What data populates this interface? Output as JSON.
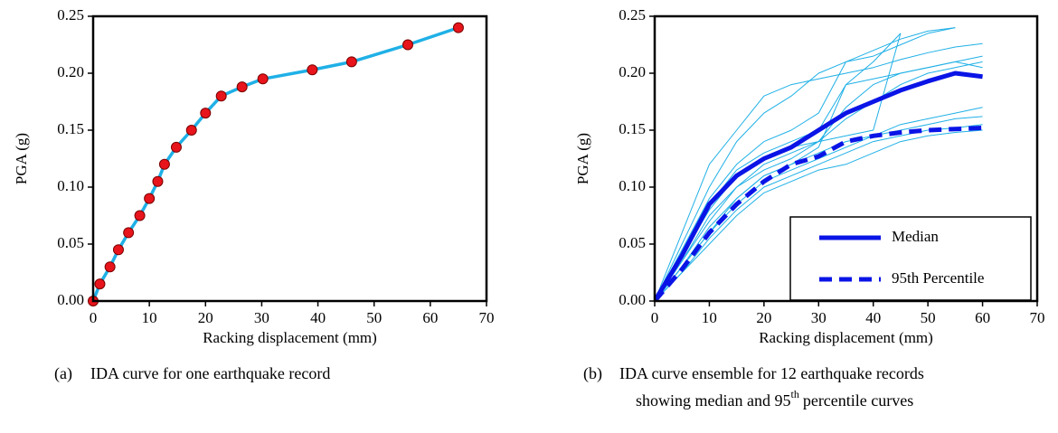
{
  "chart_data": [
    {
      "type": "line",
      "x_label": "Racking displacement (mm)",
      "y_label": "PGA (g)",
      "xlim": [
        0,
        70
      ],
      "xticks": [
        0,
        10,
        20,
        30,
        40,
        50,
        60,
        70
      ],
      "ylim": [
        0,
        0.25
      ],
      "yticks": [
        {
          "value": 0,
          "label": "0.00"
        },
        {
          "value": 0.05,
          "label": "0.05"
        },
        {
          "value": 0.1,
          "label": "0.10"
        },
        {
          "value": 0.15,
          "label": "0.15"
        },
        {
          "value": 0.2,
          "label": "0.20"
        },
        {
          "value": 0.25,
          "label": "0.25"
        }
      ],
      "x": [
        0,
        1.2,
        3,
        4.5,
        6.3,
        8.3,
        10,
        11.5,
        12.7,
        14.8,
        17.5,
        20,
        22.8,
        26.5,
        30.2,
        39,
        46,
        56,
        65
      ],
      "series": [
        {
          "color": "#1fb0e6",
          "marker_color": "#e8141c",
          "line_style": "solid",
          "values": [
            0,
            0.015,
            0.03,
            0.045,
            0.06,
            0.075,
            0.09,
            0.105,
            0.12,
            0.135,
            0.15,
            0.165,
            0.18,
            0.188,
            0.195,
            0.203,
            0.21,
            0.225,
            0.24
          ]
        }
      ],
      "caption": {
        "label": "(a)",
        "lines": [
          "IDA curve for one earthquake record"
        ]
      }
    },
    {
      "type": "line",
      "x_label": "Racking displacement (mm)",
      "y_label": "PGA (g)",
      "xlim": [
        0,
        70
      ],
      "xticks": [
        0,
        10,
        20,
        30,
        40,
        50,
        60,
        70
      ],
      "ylim": [
        0,
        0.25
      ],
      "yticks": [
        {
          "value": 0,
          "label": "0.00"
        },
        {
          "value": 0.05,
          "label": "0.05"
        },
        {
          "value": 0.1,
          "label": "0.10"
        },
        {
          "value": 0.15,
          "label": "0.15"
        },
        {
          "value": 0.2,
          "label": "0.20"
        },
        {
          "value": 0.25,
          "label": "0.25"
        }
      ],
      "x": [
        0,
        5,
        10,
        15,
        20,
        25,
        30,
        35,
        40,
        45,
        50,
        55,
        60
      ],
      "legend": "lower right",
      "series": [
        {
          "color": "#1fb0e6",
          "line_style": "thin",
          "values": [
            0,
            0.06,
            0.12,
            0.15,
            0.18,
            0.19,
            0.195,
            0.2,
            0.205,
            0.212,
            0.218,
            0.223,
            0.226
          ]
        },
        {
          "color": "#1fb0e6",
          "line_style": "thin",
          "values": [
            0,
            0.05,
            0.1,
            0.14,
            0.165,
            0.18,
            0.2,
            0.21,
            0.215,
            0.225,
            0.235,
            0.24,
            null
          ]
        },
        {
          "color": "#1fb0e6",
          "line_style": "thin",
          "values": [
            0,
            0.045,
            0.09,
            0.12,
            0.14,
            0.15,
            0.165,
            0.21,
            0.22,
            0.23,
            0.237,
            0.24,
            null
          ]
        },
        {
          "color": "#1fb0e6",
          "line_style": "thin",
          "values": [
            0,
            0.04,
            0.085,
            0.115,
            0.13,
            0.14,
            0.15,
            0.19,
            0.21,
            0.235,
            null,
            null,
            null
          ]
        },
        {
          "color": "#1fb0e6",
          "line_style": "thin",
          "values": [
            0,
            0.04,
            0.08,
            0.11,
            0.125,
            0.135,
            0.14,
            0.145,
            0.15,
            0.235,
            null,
            null,
            null
          ]
        },
        {
          "color": "#1fb0e6",
          "line_style": "thin",
          "values": [
            0,
            0.035,
            0.075,
            0.1,
            0.12,
            0.13,
            0.14,
            0.16,
            0.175,
            0.19,
            0.2,
            0.205,
            0.21
          ]
        },
        {
          "color": "#1fb0e6",
          "line_style": "thin",
          "values": [
            0,
            0.035,
            0.07,
            0.1,
            0.115,
            0.125,
            0.14,
            0.17,
            0.19,
            0.2,
            0.205,
            0.21,
            0.205
          ]
        },
        {
          "color": "#1fb0e6",
          "line_style": "thin",
          "values": [
            0,
            0.03,
            0.065,
            0.09,
            0.11,
            0.12,
            0.13,
            0.14,
            0.145,
            0.15,
            0.155,
            0.16,
            0.162
          ]
        },
        {
          "color": "#1fb0e6",
          "line_style": "thin",
          "values": [
            0,
            0.03,
            0.06,
            0.085,
            0.105,
            0.115,
            0.125,
            0.135,
            0.145,
            0.155,
            0.16,
            0.165,
            0.17
          ]
        },
        {
          "color": "#1fb0e6",
          "line_style": "thin",
          "values": [
            0,
            0.025,
            0.055,
            0.08,
            0.1,
            0.11,
            0.12,
            0.13,
            0.14,
            0.145,
            0.15,
            0.152,
            0.155
          ]
        },
        {
          "color": "#1fb0e6",
          "line_style": "thin",
          "values": [
            0,
            0.025,
            0.05,
            0.075,
            0.095,
            0.105,
            0.115,
            0.12,
            0.13,
            0.14,
            0.145,
            0.148,
            0.15
          ]
        },
        {
          "color": "#1fb0e6",
          "line_style": "thin",
          "values": [
            0,
            0.03,
            0.06,
            0.09,
            0.11,
            0.12,
            0.135,
            0.19,
            0.195,
            0.2,
            0.205,
            0.21,
            0.215
          ]
        },
        {
          "name": "Median",
          "color": "#0a14e6",
          "line_style": "solid",
          "values": [
            0,
            0.04,
            0.085,
            0.11,
            0.125,
            0.135,
            0.15,
            0.165,
            0.175,
            0.185,
            0.193,
            0.2,
            0.197
          ]
        },
        {
          "name": "95th Percentile",
          "color": "#0a14e6",
          "line_style": "dashed",
          "values": [
            0,
            0.028,
            0.06,
            0.085,
            0.105,
            0.12,
            0.127,
            0.14,
            0.145,
            0.148,
            0.15,
            0.151,
            0.152
          ]
        }
      ],
      "caption": {
        "label": "(b)",
        "lines": [
          "IDA curve ensemble for 12 earthquake records",
          "showing median and 95"
        ],
        "sup": "th",
        "after": "percentile curves"
      }
    }
  ]
}
